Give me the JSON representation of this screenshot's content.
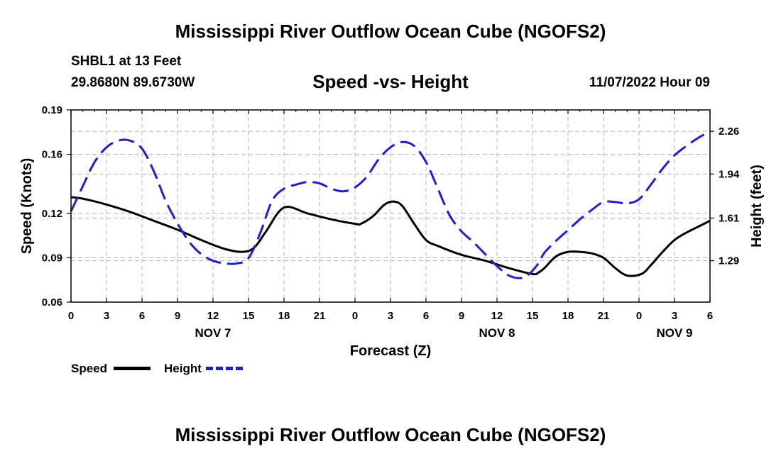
{
  "title": "Mississippi River Outflow Ocean Cube (NGOFS2)",
  "station": "SHBL1 at 13 Feet",
  "coordinates": "29.8680N  89.6730W",
  "subtitle": "Speed -vs- Height",
  "datetime": "11/07/2022 Hour 09",
  "bottom_title": "Mississippi River Outflow Ocean Cube (NGOFS2)",
  "legend": {
    "speed": "Speed",
    "height": "Height"
  },
  "chart_data": {
    "type": "line",
    "title": "Speed -vs- Height",
    "xlabel": "Forecast (Z)",
    "ylabel": "Speed (Knots)",
    "y2label": "Height (feet)",
    "xlim": [
      0,
      54
    ],
    "ylim": [
      0.06,
      0.19
    ],
    "y2lim": [
      0.98,
      2.42
    ],
    "x_ticks": [
      0,
      3,
      6,
      9,
      12,
      15,
      18,
      21,
      24,
      27,
      30,
      33,
      36,
      39,
      42,
      45,
      48,
      51,
      54
    ],
    "x_tick_labels": [
      "0",
      "3",
      "6",
      "9",
      "12",
      "15",
      "18",
      "21",
      "0",
      "3",
      "6",
      "9",
      "12",
      "15",
      "18",
      "21",
      "0",
      "3",
      "6"
    ],
    "y_ticks": [
      0.06,
      0.09,
      0.12,
      0.16,
      0.19
    ],
    "y_tick_labels": [
      "0.06",
      "0.09",
      "0.12",
      "0.16",
      "0.19"
    ],
    "y2_ticks": [
      1.29,
      1.61,
      1.94,
      2.26
    ],
    "y2_tick_labels": [
      "1.29",
      "1.61",
      "1.94",
      "2.26"
    ],
    "day_labels": [
      {
        "x": 12,
        "label": "NOV 7"
      },
      {
        "x": 36,
        "label": "NOV 8"
      },
      {
        "x": 51,
        "label": "NOV 9"
      }
    ],
    "series": [
      {
        "name": "Speed",
        "axis": "left",
        "color": "#000000",
        "x": [
          0,
          1,
          3,
          5,
          7,
          9,
          11,
          13,
          14.5,
          15.5,
          16.5,
          18,
          20,
          22,
          24,
          24.5,
          25.5,
          26.5,
          27.3,
          28,
          29,
          30,
          31,
          33,
          35,
          37,
          39,
          39.5,
          40,
          41,
          42,
          43,
          44,
          45,
          46,
          47,
          48.2,
          49,
          50,
          51,
          52,
          53,
          54
        ],
        "values": [
          0.131,
          0.13,
          0.126,
          0.121,
          0.115,
          0.109,
          0.102,
          0.096,
          0.094,
          0.097,
          0.108,
          0.124,
          0.12,
          0.116,
          0.113,
          0.113,
          0.118,
          0.126,
          0.128,
          0.125,
          0.113,
          0.102,
          0.098,
          0.092,
          0.088,
          0.083,
          0.079,
          0.08,
          0.083,
          0.091,
          0.094,
          0.094,
          0.093,
          0.09,
          0.083,
          0.078,
          0.079,
          0.085,
          0.094,
          0.102,
          0.107,
          0.111,
          0.115
        ]
      },
      {
        "name": "Height",
        "axis": "right",
        "color": "#1f1fd0",
        "x": [
          0,
          1,
          2,
          3,
          4,
          5,
          6,
          7,
          8,
          9,
          10,
          11,
          12,
          13,
          14,
          15,
          16,
          17,
          18,
          19,
          20,
          21,
          22,
          23,
          24,
          25,
          26,
          27,
          28,
          29,
          30,
          31,
          32,
          33,
          34,
          35,
          36,
          37,
          38,
          38.7,
          39.5,
          40,
          41,
          42,
          43,
          44,
          45,
          46,
          47,
          48,
          49,
          50,
          51,
          52,
          53,
          54
        ],
        "values": [
          1.66,
          1.85,
          2.03,
          2.14,
          2.19,
          2.19,
          2.13,
          1.96,
          1.74,
          1.57,
          1.43,
          1.34,
          1.29,
          1.27,
          1.27,
          1.31,
          1.5,
          1.74,
          1.83,
          1.86,
          1.88,
          1.87,
          1.83,
          1.81,
          1.84,
          1.92,
          2.05,
          2.14,
          2.18,
          2.15,
          2.03,
          1.83,
          1.63,
          1.51,
          1.43,
          1.34,
          1.25,
          1.18,
          1.16,
          1.19,
          1.27,
          1.35,
          1.44,
          1.52,
          1.6,
          1.67,
          1.73,
          1.73,
          1.72,
          1.75,
          1.86,
          1.98,
          2.08,
          2.15,
          2.21,
          2.26
        ]
      }
    ]
  }
}
